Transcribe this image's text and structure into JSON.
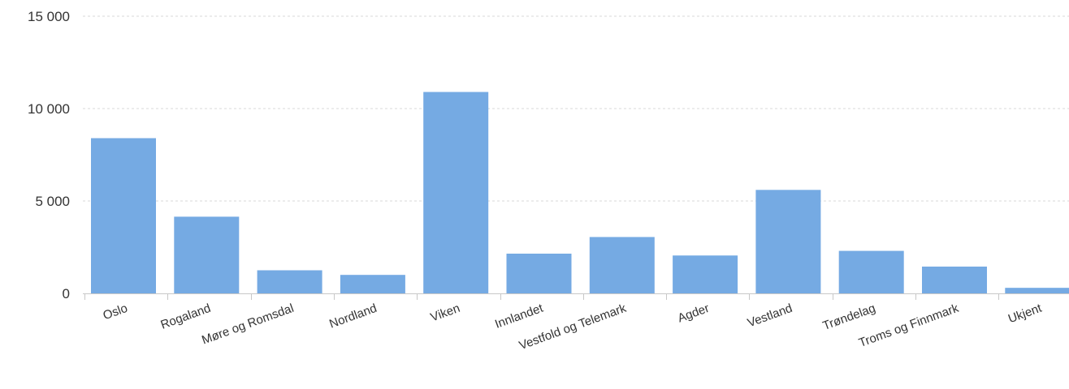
{
  "chart_data": {
    "type": "bar",
    "categories": [
      "Oslo",
      "Rogaland",
      "Møre og Romsdal",
      "Nordland",
      "Viken",
      "Innlandet",
      "Vestfold og Telemark",
      "Agder",
      "Vestland",
      "Trøndelag",
      "Troms og Finnmark",
      "Ukjent"
    ],
    "values": [
      8400,
      4150,
      1250,
      1000,
      10900,
      2150,
      3050,
      2050,
      5600,
      2300,
      1450,
      300
    ],
    "ylim": [
      0,
      15000
    ],
    "yticks": [
      0,
      5000,
      10000,
      15000
    ],
    "ytick_labels": [
      "0",
      "5 000",
      "10 000",
      "15 000"
    ],
    "title": "",
    "xlabel": "",
    "ylabel": "",
    "grid": true,
    "bar_color": "#75aae3"
  }
}
